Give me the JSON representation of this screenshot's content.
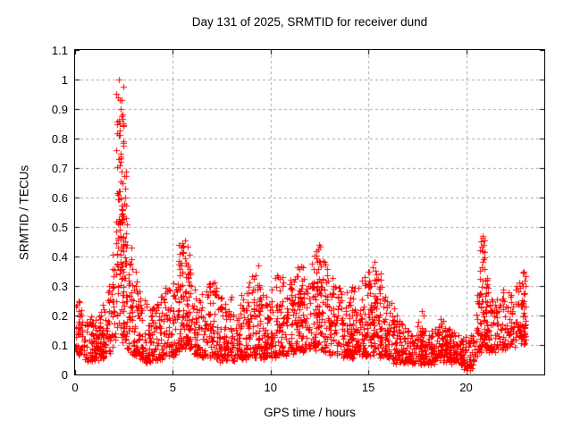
{
  "chart_data": {
    "type": "scatter",
    "title": "Day 131 of 2025, SRMTID for receiver dund",
    "xlabel": "GPS time / hours",
    "ylabel": "SRMTID / TECUs",
    "xlim": [
      0,
      24
    ],
    "ylim": [
      0,
      1.1
    ],
    "x_tick_values": [
      0,
      5,
      10,
      15,
      20
    ],
    "x_tick_labels": [
      "0",
      "5",
      "10",
      "15",
      "20"
    ],
    "y_tick_values": [
      0,
      0.1,
      0.2,
      0.3,
      0.4,
      0.5,
      0.6,
      0.7,
      0.8,
      0.9,
      1.0,
      1.1
    ],
    "y_tick_labels": [
      "0",
      "0.1",
      "0.2",
      "0.3",
      "0.4",
      "0.5",
      "0.6",
      "0.7",
      "0.8",
      "0.9",
      "1",
      "1.1"
    ],
    "grid": "dashed, at every x and y major tick",
    "legend": "none",
    "marker": {
      "shape": "plus",
      "size": 7
    },
    "colors": {
      "marker": "#ff0000",
      "grid": "#a8a8a8",
      "axis": "#000000",
      "background": "#ffffff",
      "text": "#000000"
    },
    "data_span_hours": [
      0,
      23.05
    ],
    "seed": 131,
    "base_point_count": 2400,
    "skew_exponent": 1.8,
    "jitter": 0.02,
    "density_envelope": {
      "description": "Dense noisy band of SRMTID values vs GPS hour; keyframes are [hour, band_low_TECUs, band_high_TECUs], linearly interpolated. Main spike to 1.0 TECUs near hour 2.2; quiet period hours 16.5-20.3; secondary spikes near hours 5.6, 12.5, 20.85, 22.9.",
      "keyframes": [
        [
          0.0,
          0.07,
          0.28
        ],
        [
          0.3,
          0.07,
          0.24
        ],
        [
          0.6,
          0.05,
          0.2
        ],
        [
          1.0,
          0.05,
          0.18
        ],
        [
          1.4,
          0.06,
          0.24
        ],
        [
          1.8,
          0.08,
          0.32
        ],
        [
          2.05,
          0.1,
          0.55
        ],
        [
          2.2,
          0.13,
          1.0
        ],
        [
          2.35,
          0.13,
          0.95
        ],
        [
          2.5,
          0.11,
          0.72
        ],
        [
          2.7,
          0.09,
          0.5
        ],
        [
          3.0,
          0.07,
          0.38
        ],
        [
          3.4,
          0.05,
          0.26
        ],
        [
          3.8,
          0.05,
          0.22
        ],
        [
          4.2,
          0.05,
          0.26
        ],
        [
          4.7,
          0.06,
          0.3
        ],
        [
          5.1,
          0.07,
          0.34
        ],
        [
          5.5,
          0.09,
          0.44
        ],
        [
          5.8,
          0.08,
          0.38
        ],
        [
          6.2,
          0.07,
          0.3
        ],
        [
          6.6,
          0.06,
          0.27
        ],
        [
          7.0,
          0.06,
          0.33
        ],
        [
          7.4,
          0.05,
          0.27
        ],
        [
          7.8,
          0.05,
          0.24
        ],
        [
          8.2,
          0.05,
          0.28
        ],
        [
          8.7,
          0.06,
          0.3
        ],
        [
          9.2,
          0.06,
          0.34
        ],
        [
          9.6,
          0.06,
          0.28
        ],
        [
          10.0,
          0.06,
          0.3
        ],
        [
          10.5,
          0.07,
          0.36
        ],
        [
          11.0,
          0.07,
          0.32
        ],
        [
          11.5,
          0.08,
          0.38
        ],
        [
          12.0,
          0.08,
          0.34
        ],
        [
          12.45,
          0.09,
          0.44
        ],
        [
          12.9,
          0.08,
          0.37
        ],
        [
          13.3,
          0.07,
          0.33
        ],
        [
          13.8,
          0.06,
          0.28
        ],
        [
          14.3,
          0.06,
          0.3
        ],
        [
          14.8,
          0.07,
          0.34
        ],
        [
          15.3,
          0.07,
          0.38
        ],
        [
          15.8,
          0.06,
          0.3
        ],
        [
          16.2,
          0.05,
          0.24
        ],
        [
          16.6,
          0.04,
          0.18
        ],
        [
          17.1,
          0.04,
          0.15
        ],
        [
          17.6,
          0.04,
          0.19
        ],
        [
          18.1,
          0.04,
          0.14
        ],
        [
          18.6,
          0.05,
          0.19
        ],
        [
          19.1,
          0.05,
          0.16
        ],
        [
          19.6,
          0.04,
          0.14
        ],
        [
          20.0,
          0.02,
          0.12
        ],
        [
          20.25,
          0.02,
          0.14
        ],
        [
          20.5,
          0.05,
          0.22
        ],
        [
          20.8,
          0.09,
          0.48
        ],
        [
          21.1,
          0.08,
          0.3
        ],
        [
          21.5,
          0.08,
          0.27
        ],
        [
          22.0,
          0.09,
          0.31
        ],
        [
          22.4,
          0.1,
          0.3
        ],
        [
          22.7,
          0.1,
          0.33
        ],
        [
          23.0,
          0.1,
          0.36
        ]
      ]
    },
    "burst_columns": {
      "description": "Extra vertical plumes [hour, half_spread_hours, count, low, high]",
      "items": [
        [
          2.28,
          0.2,
          60,
          0.25,
          1.0
        ],
        [
          2.45,
          0.15,
          25,
          0.2,
          0.75
        ],
        [
          5.6,
          0.3,
          28,
          0.15,
          0.45
        ],
        [
          9.3,
          0.2,
          12,
          0.15,
          0.35
        ],
        [
          11.5,
          0.2,
          16,
          0.15,
          0.37
        ],
        [
          12.5,
          0.25,
          26,
          0.15,
          0.44
        ],
        [
          15.4,
          0.25,
          18,
          0.12,
          0.37
        ],
        [
          20.85,
          0.12,
          26,
          0.1,
          0.47
        ],
        [
          21.0,
          0.1,
          10,
          0.1,
          0.35
        ],
        [
          22.9,
          0.12,
          20,
          0.12,
          0.35
        ]
      ]
    },
    "notable_points": [
      [
        2.24,
        1.0
      ],
      [
        2.3,
        0.93
      ],
      [
        2.33,
        0.9
      ],
      [
        2.26,
        0.86
      ],
      [
        5.62,
        0.455
      ],
      [
        9.35,
        0.37
      ],
      [
        12.5,
        0.44
      ],
      [
        17.75,
        0.215
      ],
      [
        17.85,
        0.2
      ],
      [
        20.3,
        0.02
      ],
      [
        20.85,
        0.47
      ],
      [
        20.9,
        0.44
      ],
      [
        22.95,
        0.35
      ]
    ]
  }
}
